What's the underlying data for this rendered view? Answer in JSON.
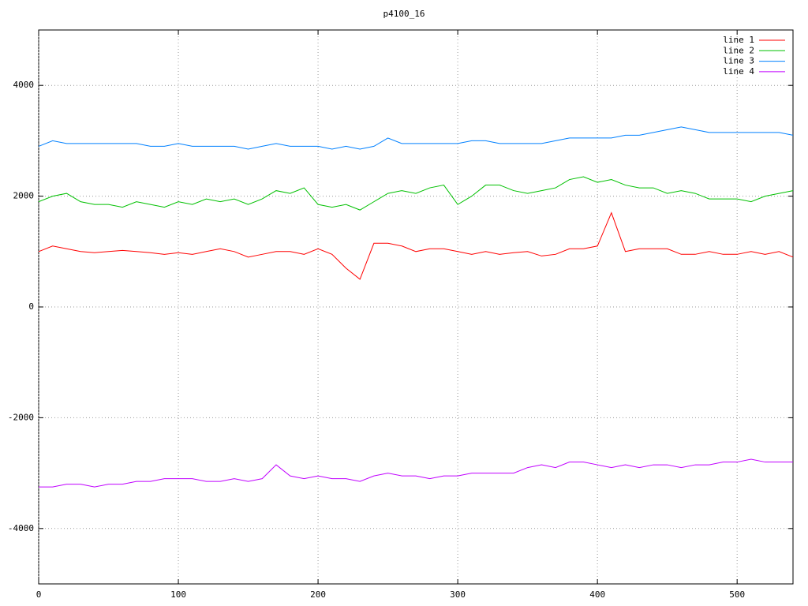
{
  "chart_data": {
    "type": "line",
    "title": "p4100_16",
    "x": [
      0,
      10,
      20,
      30,
      40,
      50,
      60,
      70,
      80,
      90,
      100,
      110,
      120,
      130,
      140,
      150,
      160,
      170,
      180,
      190,
      200,
      210,
      220,
      230,
      240,
      250,
      260,
      270,
      280,
      290,
      300,
      310,
      320,
      330,
      340,
      350,
      360,
      370,
      380,
      390,
      400,
      410,
      420,
      430,
      440,
      450,
      460,
      470,
      480,
      490,
      500,
      510,
      520,
      530,
      540
    ],
    "series": [
      {
        "name": "line 1",
        "color": "#ff0000",
        "values": [
          1000,
          1100,
          1050,
          1000,
          980,
          1000,
          1020,
          1000,
          980,
          950,
          980,
          950,
          1000,
          1050,
          1000,
          900,
          950,
          1000,
          1000,
          950,
          1050,
          950,
          700,
          500,
          1150,
          1150,
          1100,
          1000,
          1050,
          1050,
          1000,
          950,
          1000,
          950,
          980,
          1000,
          920,
          950,
          1050,
          1050,
          1100,
          1700,
          1000,
          1050,
          1050,
          1050,
          950,
          950,
          1000,
          950,
          950,
          1000,
          950,
          1000,
          900
        ]
      },
      {
        "name": "line 2",
        "color": "#00c000",
        "values": [
          1900,
          2000,
          2050,
          1900,
          1850,
          1850,
          1800,
          1900,
          1850,
          1800,
          1900,
          1850,
          1950,
          1900,
          1950,
          1850,
          1950,
          2100,
          2050,
          2150,
          1850,
          1800,
          1850,
          1750,
          1900,
          2050,
          2100,
          2050,
          2150,
          2200,
          1850,
          2000,
          2200,
          2200,
          2100,
          2050,
          2100,
          2150,
          2300,
          2350,
          2250,
          2300,
          2200,
          2150,
          2150,
          2050,
          2100,
          2050,
          1950,
          1950,
          1950,
          1900,
          2000,
          2050,
          2100
        ]
      },
      {
        "name": "line 3",
        "color": "#0080ff",
        "values": [
          2900,
          3000,
          2950,
          2950,
          2950,
          2950,
          2950,
          2950,
          2900,
          2900,
          2950,
          2900,
          2900,
          2900,
          2900,
          2850,
          2900,
          2950,
          2900,
          2900,
          2900,
          2850,
          2900,
          2850,
          2900,
          3050,
          2950,
          2950,
          2950,
          2950,
          2950,
          3000,
          3000,
          2950,
          2950,
          2950,
          2950,
          3000,
          3050,
          3050,
          3050,
          3050,
          3100,
          3100,
          3150,
          3200,
          3250,
          3200,
          3150,
          3150,
          3150,
          3150,
          3150,
          3150,
          3100
        ]
      },
      {
        "name": "line 4",
        "color": "#c000ff",
        "values": [
          -3250,
          -3250,
          -3200,
          -3200,
          -3250,
          -3200,
          -3200,
          -3150,
          -3150,
          -3100,
          -3100,
          -3100,
          -3150,
          -3150,
          -3100,
          -3150,
          -3100,
          -2850,
          -3050,
          -3100,
          -3050,
          -3100,
          -3100,
          -3150,
          -3050,
          -3000,
          -3050,
          -3050,
          -3100,
          -3050,
          -3050,
          -3000,
          -3000,
          -3000,
          -3000,
          -2900,
          -2850,
          -2900,
          -2800,
          -2800,
          -2850,
          -2900,
          -2850,
          -2900,
          -2850,
          -2850,
          -2900,
          -2850,
          -2850,
          -2800,
          -2800,
          -2750,
          -2800,
          -2800,
          -2800
        ]
      }
    ],
    "xlim": [
      0,
      540
    ],
    "ylim": [
      -5000,
      5000
    ],
    "xticks": [
      0,
      100,
      200,
      300,
      400,
      500
    ],
    "yticks": [
      -4000,
      -2000,
      0,
      2000,
      4000
    ],
    "grid": true,
    "legend": "top-right"
  }
}
